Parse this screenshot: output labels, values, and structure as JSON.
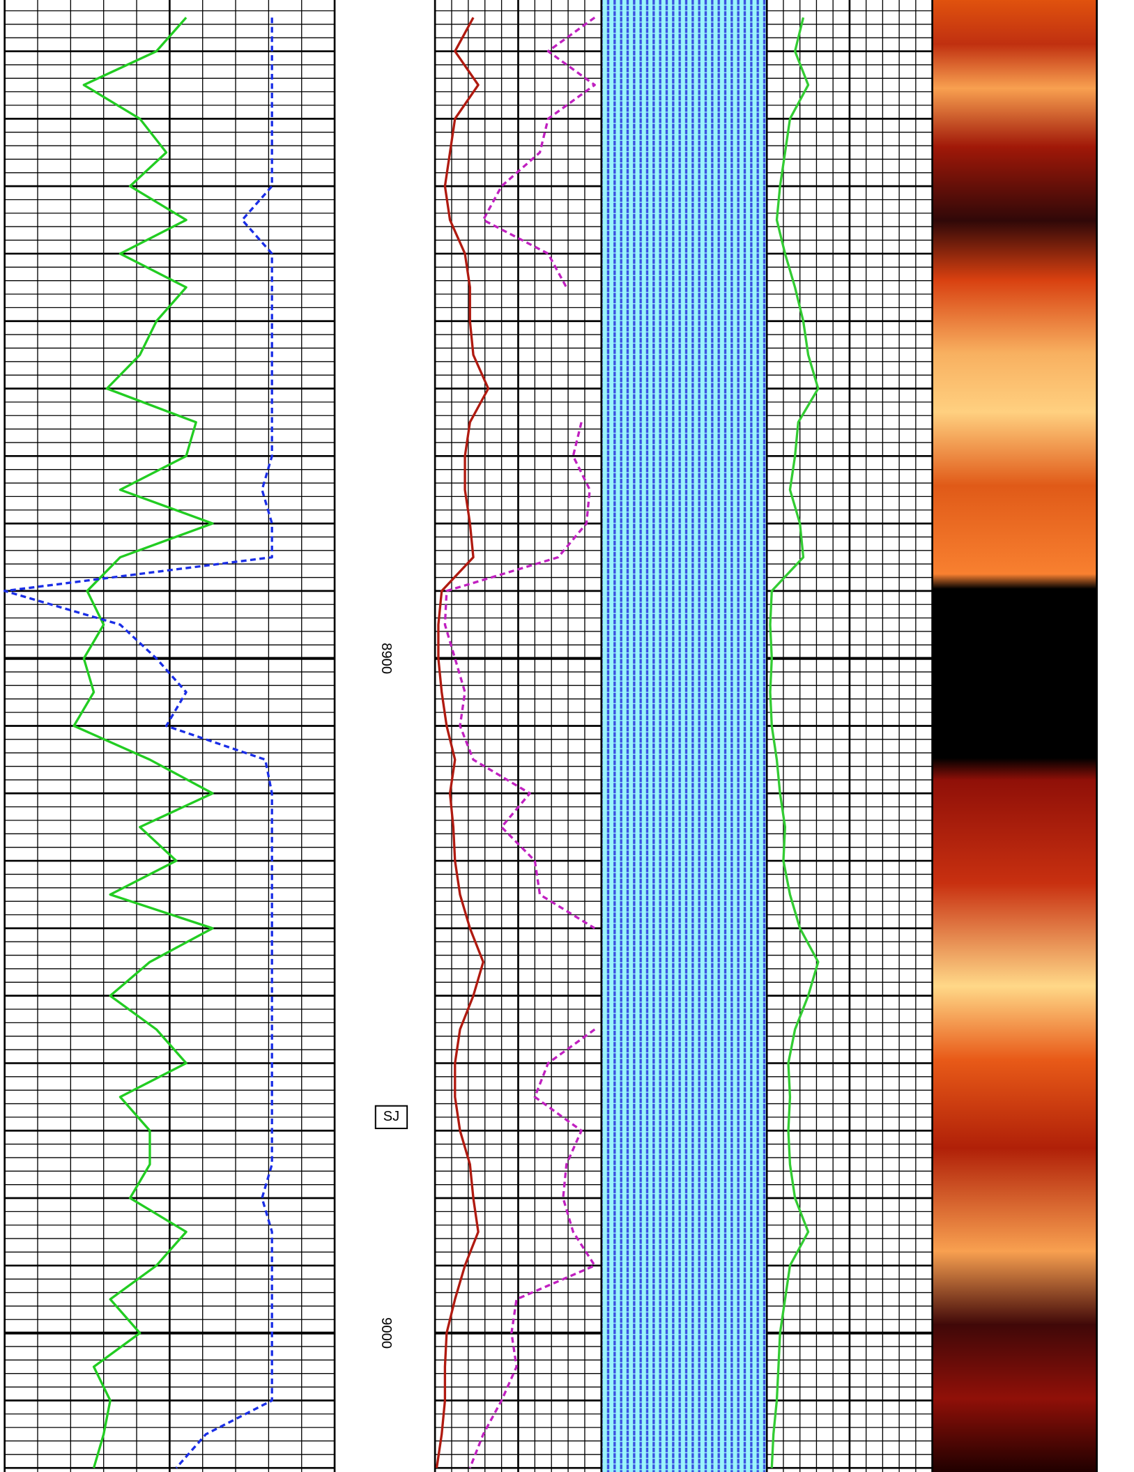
{
  "chart_data": {
    "type": "well-log",
    "ylim": [
      8802.4,
      9020.6
    ],
    "yticks": [
      8800,
      8900,
      9000
    ],
    "grid": true,
    "y": [
      8805,
      8810,
      8815,
      8820,
      8825,
      8830,
      8835,
      8840,
      8845,
      8850,
      8855,
      8860,
      8865,
      8870,
      8875,
      8880,
      8885,
      8890,
      8895,
      8900,
      8905,
      8910,
      8915,
      8920,
      8925,
      8930,
      8935,
      8940,
      8945,
      8950,
      8955,
      8960,
      8965,
      8970,
      8975,
      8980,
      8985,
      8990,
      8995,
      9000,
      9005,
      9010,
      9015,
      9020
    ],
    "annotations": [
      {
        "text": "SJ",
        "y": 8968
      }
    ],
    "tracks": [
      {
        "xlim": [
          0,
          100
        ],
        "series": [
          {
            "color": "#22cc22",
            "dash": false,
            "values": [
              55,
              46,
              24,
              41,
              49,
              38,
              55,
              35,
              55,
              46,
              41,
              31,
              58,
              55,
              35,
              63,
              35,
              25,
              30,
              24,
              27,
              21,
              44,
              63,
              41,
              52,
              32,
              63,
              44,
              32,
              46,
              55,
              35,
              44,
              44,
              38,
              55,
              46,
              32,
              41,
              27,
              32,
              30,
              27
            ]
          },
          {
            "color": "#1a2ee6",
            "dash": true,
            "values": [
              81,
              81,
              81,
              81,
              81,
              81,
              72,
              81,
              81,
              81,
              81,
              81,
              81,
              81,
              78,
              81,
              81,
              0,
              35,
              46,
              55,
              49,
              79,
              81,
              81,
              81,
              81,
              81,
              81,
              81,
              81,
              81,
              81,
              81,
              81,
              78,
              81,
              81,
              81,
              81,
              81,
              81,
              61,
              52
            ]
          }
        ]
      },
      {
        "xlim": [
          0,
          100
        ],
        "series": [
          {
            "color": "#b01a10",
            "dash": false,
            "values": [
              23,
              12,
              26,
              12,
              9,
              6,
              9,
              18,
              21,
              21,
              23,
              32,
              21,
              18,
              18,
              21,
              23,
              4,
              2,
              2,
              4,
              7,
              12,
              9,
              11,
              12,
              15,
              21,
              29,
              23,
              15,
              12,
              12,
              15,
              21,
              23,
              26,
              18,
              12,
              7,
              6,
              6,
              4,
              1
            ]
          },
          {
            "color": "#c020c0",
            "dash": true,
            "values": [
              96,
              68,
              96,
              68,
              63,
              40,
              29,
              68,
              79,
              null,
              null,
              null,
              88,
              83,
              93,
              91,
              74,
              7,
              6,
              12,
              18,
              15,
              23,
              57,
              40,
              60,
              63,
              96,
              null,
              null,
              96,
              68,
              60,
              88,
              79,
              77,
              83,
              96,
              49,
              46,
              49,
              40,
              29,
              21
            ]
          }
        ]
      },
      {
        "xlim": [
          0,
          100
        ],
        "series": [
          {
            "color": "#33cc33",
            "dash": false,
            "values": [
              22,
              17,
              25,
              14,
              11,
              8,
              6,
              11,
              17,
              22,
              25,
              31,
              19,
              17,
              14,
              20,
              22,
              3,
              2,
              3,
              2,
              3,
              6,
              8,
              11,
              10,
              14,
              20,
              31,
              25,
              17,
              13,
              14,
              13,
              14,
              17,
              25,
              14,
              11,
              8,
              7,
              6,
              4,
              3
            ]
          }
        ]
      }
    ]
  }
}
